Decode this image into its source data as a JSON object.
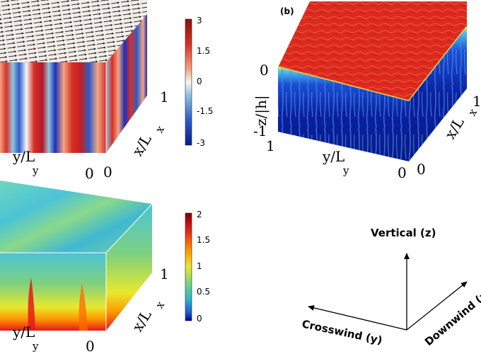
{
  "figure": {
    "panel_b_label": "(b)",
    "panel_a": {
      "colorbar_ticks": [
        "3",
        "1.5",
        "0",
        "-1.5",
        "-3"
      ],
      "x_axis_label": "x/L",
      "x_axis_sub": "x",
      "y_axis_label": "y/L",
      "y_axis_sub": "y",
      "x_ticks": [
        "1",
        "0"
      ],
      "y_ticks": [
        "0"
      ]
    },
    "panel_b": {
      "z_axis_label": "z/|h|",
      "z_ticks": [
        "0",
        "-1"
      ],
      "y_ticks": [
        "1",
        "0"
      ],
      "x_ticks": [
        "1",
        "0"
      ],
      "x_axis_label": "x/L",
      "x_axis_sub": "x",
      "y_axis_label": "y/L",
      "y_axis_sub": "y"
    },
    "panel_c": {
      "colorbar_ticks": [
        "2",
        "1.5",
        "1",
        "0.5",
        "0"
      ],
      "x_axis_label": "x/L",
      "x_axis_sub": "x",
      "y_axis_label": "y/L",
      "y_axis_sub": "y",
      "x_ticks": [
        "1",
        "0"
      ]
    },
    "panel_d": {
      "vertical_label": "Vertical (z)",
      "crosswind_label": "Crosswind (y)",
      "downwind_label": "Downwind (x)"
    },
    "colors": {
      "diverging_high": "#c41e1e",
      "diverging_mid": "#f5f5f5",
      "diverging_low": "#1b2fb8",
      "seq_high": "#8b0000",
      "seq_mid": "#e8e82e",
      "seq_low": "#2bb7c9"
    }
  }
}
